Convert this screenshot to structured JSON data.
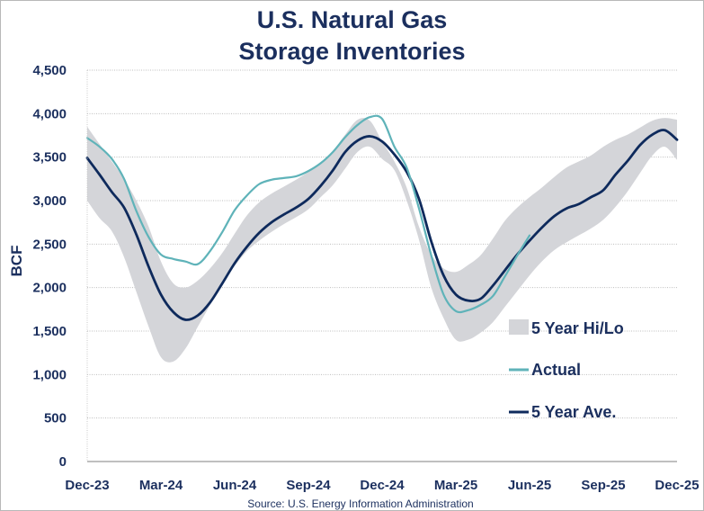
{
  "chart_data": {
    "type": "line",
    "title_lines": [
      "U.S. Natural Gas",
      "Storage Inventories"
    ],
    "ylabel": "BCF",
    "ylim": [
      0,
      4500
    ],
    "yticks": [
      0,
      500,
      1000,
      1500,
      2000,
      2500,
      3000,
      3500,
      4000,
      4500
    ],
    "ytick_labels": [
      "0",
      "500",
      "1,000",
      "1,500",
      "2,000",
      "2,500",
      "3,000",
      "3,500",
      "4,000",
      "4,500"
    ],
    "xlim": [
      0,
      24
    ],
    "xtick_labels": [
      "Dec-23",
      "Mar-24",
      "Jun-24",
      "Sep-24",
      "Dec-24",
      "Mar-25",
      "Jun-25",
      "Sep-25",
      "Dec-25"
    ],
    "xtick_positions": [
      0,
      3,
      6,
      9,
      12,
      15,
      18,
      21,
      24
    ],
    "grid": "horizontal",
    "legend_position": "right",
    "colors": {
      "band": "#d4d5d9",
      "actual": "#5fb3b9",
      "average": "#0e2a5c",
      "text": "#1b2f5e",
      "grid": "#bdbdbd"
    },
    "band": {
      "name": "5 Year Hi/Lo",
      "x": [
        0,
        0.5,
        1,
        1.5,
        2,
        2.5,
        3,
        3.5,
        4,
        4.5,
        5,
        5.5,
        6,
        6.5,
        7,
        7.5,
        8,
        8.5,
        9,
        9.5,
        10,
        10.5,
        11,
        11.5,
        12,
        12.5,
        13,
        13.5,
        14,
        14.5,
        15,
        15.5,
        16,
        16.5,
        17,
        17.5,
        18,
        18.5,
        19,
        19.5,
        20,
        20.5,
        21,
        21.5,
        22,
        22.5,
        23,
        23.5,
        24
      ],
      "hi": [
        3850,
        3650,
        3450,
        3250,
        3000,
        2700,
        2300,
        2050,
        2000,
        2080,
        2220,
        2400,
        2620,
        2830,
        2980,
        3080,
        3160,
        3240,
        3330,
        3420,
        3570,
        3760,
        3930,
        3920,
        3680,
        3450,
        3150,
        2700,
        2380,
        2220,
        2180,
        2260,
        2370,
        2560,
        2770,
        2920,
        3040,
        3150,
        3270,
        3380,
        3450,
        3520,
        3620,
        3700,
        3760,
        3840,
        3920,
        3950,
        3930
      ],
      "lo": [
        3000,
        2800,
        2650,
        2350,
        1950,
        1550,
        1200,
        1150,
        1300,
        1550,
        1800,
        2050,
        2250,
        2420,
        2540,
        2640,
        2730,
        2810,
        2900,
        3040,
        3180,
        3370,
        3560,
        3620,
        3480,
        3350,
        3000,
        2550,
        2000,
        1650,
        1400,
        1400,
        1480,
        1600,
        1780,
        1960,
        2140,
        2300,
        2430,
        2520,
        2600,
        2680,
        2780,
        2930,
        3110,
        3320,
        3520,
        3620,
        3470
      ]
    },
    "series": [
      {
        "name": "Actual",
        "x": [
          0,
          0.5,
          1,
          1.5,
          2,
          2.5,
          3,
          3.5,
          4,
          4.5,
          5,
          5.5,
          6,
          6.5,
          7,
          7.5,
          8,
          8.5,
          9,
          9.5,
          10,
          10.5,
          11,
          11.5,
          12,
          12.5,
          13,
          13.5,
          14,
          14.5,
          15,
          15.5,
          16,
          16.5,
          17,
          17.5,
          18
        ],
        "values": [
          3720,
          3620,
          3480,
          3250,
          2880,
          2580,
          2380,
          2330,
          2300,
          2270,
          2420,
          2640,
          2890,
          3060,
          3190,
          3240,
          3260,
          3280,
          3340,
          3430,
          3560,
          3730,
          3870,
          3960,
          3940,
          3620,
          3380,
          2910,
          2370,
          1920,
          1730,
          1740,
          1800,
          1900,
          2130,
          2370,
          2600
        ]
      },
      {
        "name": "5 Year Ave.",
        "x": [
          0,
          0.5,
          1,
          1.5,
          2,
          2.5,
          3,
          3.5,
          4,
          4.5,
          5,
          5.5,
          6,
          6.5,
          7,
          7.5,
          8,
          8.5,
          9,
          9.5,
          10,
          10.5,
          11,
          11.5,
          12,
          12.5,
          13,
          13.5,
          14,
          14.5,
          15,
          15.5,
          16,
          16.5,
          17,
          17.5,
          18,
          18.5,
          19,
          19.5,
          20,
          20.5,
          21,
          21.5,
          22,
          22.5,
          23,
          23.5,
          24
        ],
        "values": [
          3490,
          3300,
          3100,
          2920,
          2610,
          2240,
          1920,
          1720,
          1630,
          1680,
          1830,
          2050,
          2280,
          2470,
          2630,
          2750,
          2840,
          2920,
          3020,
          3170,
          3350,
          3560,
          3690,
          3740,
          3680,
          3530,
          3330,
          3020,
          2530,
          2140,
          1920,
          1850,
          1870,
          2020,
          2200,
          2380,
          2540,
          2690,
          2820,
          2910,
          2960,
          3040,
          3120,
          3300,
          3460,
          3640,
          3760,
          3810,
          3700
        ]
      }
    ],
    "legend": [
      "5 Year Hi/Lo",
      "Actual",
      "5 Year Ave."
    ],
    "source": "Source: U.S. Energy Information Administration"
  }
}
